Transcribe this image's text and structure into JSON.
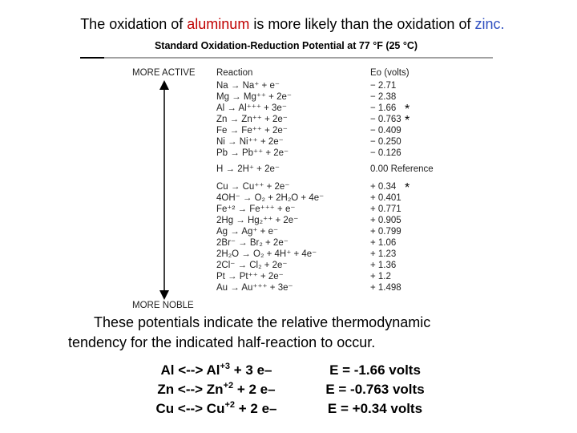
{
  "header": {
    "title_parts": [
      "The oxidation of ",
      "aluminum",
      " is more likely than the oxidation of ",
      "zinc."
    ]
  },
  "table": {
    "title": "Standard Oxidation-Reduction Potential at 77 °F (25 °C)",
    "more_active": "MORE ACTIVE",
    "more_noble": "MORE NOBLE",
    "columns": [
      "Reaction",
      "Eo (volts)"
    ],
    "rows": [
      {
        "reaction": "Na → Na⁺ + e⁻",
        "potential": "− 2.71"
      },
      {
        "reaction": "Mg → Mg⁺⁺ + 2e⁻",
        "potential": "− 2.38"
      },
      {
        "reaction": "Al → Al⁺⁺⁺ + 3e⁻",
        "potential": "− 1.66",
        "marker": "*"
      },
      {
        "reaction": "Zn → Zn⁺⁺ + 2e⁻",
        "potential": "− 0.763",
        "marker": "*"
      },
      {
        "reaction": "Fe → Fe⁺⁺ + 2e⁻",
        "potential": "− 0.409"
      },
      {
        "reaction": "Ni → Ni⁺⁺ + 2e⁻",
        "potential": "− 0.250"
      },
      {
        "reaction": "Pb → Pb⁺⁺ + 2e⁻",
        "potential": "− 0.126"
      },
      {
        "reaction": "H → 2H⁺ + 2e⁻",
        "potential": "0.00 Reference"
      },
      {
        "reaction": "Cu → Cu⁺⁺ + 2e⁻",
        "potential": "+ 0.34",
        "marker": "*"
      },
      {
        "reaction": "4OH⁻ → O₂ + 2H₂O + 4e⁻",
        "potential": "+ 0.401"
      },
      {
        "reaction": "Fe⁺² → Fe⁺⁺⁺ + e⁻",
        "potential": "+ 0.771"
      },
      {
        "reaction": "2Hg → Hg₂⁺⁺ + 2e⁻",
        "potential": "+ 0.905"
      },
      {
        "reaction": "Ag → Ag⁺ + e⁻",
        "potential": "+ 0.799"
      },
      {
        "reaction": "2Br⁻ → Br₂ + 2e⁻",
        "potential": "+ 1.06"
      },
      {
        "reaction": "2H₂O → O₂ + 4H⁺ + 4e⁻",
        "potential": "+ 1.23"
      },
      {
        "reaction": "2Cl⁻ → Cl₂ + 2e⁻",
        "potential": "+ 1.36"
      },
      {
        "reaction": "Pt → Pt⁺⁺ + 2e⁻",
        "potential": "+ 1.2"
      },
      {
        "reaction": "Au → Au⁺⁺⁺ + 3e⁻",
        "potential": "+ 1.498"
      }
    ]
  },
  "note": [
    "These potentials indicate the relative thermodynamic",
    "tendency for the indicated half-reaction to occur."
  ],
  "equations": [
    {
      "left": [
        "Al <--> Al",
        "+3",
        " + 3 e–"
      ],
      "right": "E = -1.66 volts",
      "color": "#c00000"
    },
    {
      "left": [
        "Zn <--> Zn",
        "+2",
        " + 2 e–"
      ],
      "right": "E = -0.763 volts",
      "color": "#000000"
    },
    {
      "left": [
        "Cu <--> Cu",
        "+2",
        " + 2 e–"
      ],
      "right": "E = +0.34 volts",
      "color": "#000000"
    }
  ]
}
